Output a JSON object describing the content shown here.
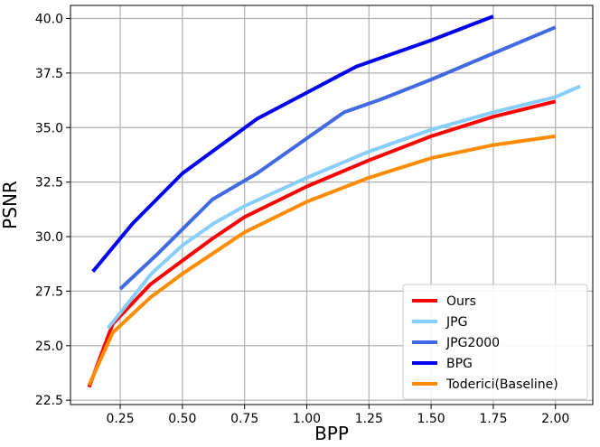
{
  "chart_data": {
    "type": "line",
    "xlabel": "BPP",
    "ylabel": "PSNR",
    "xlim": [
      0.05,
      2.15
    ],
    "ylim": [
      22.3,
      40.6
    ],
    "xticks": [
      0.25,
      0.5,
      0.75,
      1.0,
      1.25,
      1.5,
      1.75,
      2.0
    ],
    "xtick_labels": [
      "0.25",
      "0.50",
      "0.75",
      "1.00",
      "1.25",
      "1.50",
      "1.75",
      "2.00"
    ],
    "yticks": [
      22.5,
      25.0,
      27.5,
      30.0,
      32.5,
      35.0,
      37.5,
      40.0
    ],
    "ytick_labels": [
      "22.5",
      "25.0",
      "27.5",
      "30.0",
      "32.5",
      "35.0",
      "37.5",
      "40.0"
    ],
    "grid": true,
    "legend_position": "bottom-right",
    "series": [
      {
        "name": "Ours",
        "color": "#ff0000",
        "x": [
          0.125,
          0.22,
          0.37,
          0.5,
          0.62,
          0.75,
          1.0,
          1.25,
          1.5,
          1.75,
          2.0
        ],
        "y": [
          23.1,
          26.0,
          27.8,
          28.9,
          29.9,
          30.9,
          32.3,
          33.5,
          34.6,
          35.5,
          36.2
        ]
      },
      {
        "name": "JPG",
        "color": "#87cefa",
        "x": [
          0.2,
          0.25,
          0.375,
          0.5,
          0.625,
          0.75,
          1.0,
          1.25,
          1.5,
          1.75,
          2.0,
          2.1
        ],
        "y": [
          25.8,
          26.5,
          28.3,
          29.6,
          30.6,
          31.4,
          32.7,
          33.9,
          34.9,
          35.7,
          36.4,
          36.9
        ]
      },
      {
        "name": "JPG2000",
        "color": "#4169e1",
        "x": [
          0.25,
          0.4,
          0.62,
          0.8,
          1.0,
          1.15,
          1.3,
          1.5,
          1.75,
          2.0
        ],
        "y": [
          27.6,
          29.2,
          31.7,
          32.9,
          34.5,
          35.7,
          36.3,
          37.2,
          38.4,
          39.6
        ]
      },
      {
        "name": "BPG",
        "color": "#0000ee",
        "x": [
          0.14,
          0.3,
          0.5,
          0.8,
          1.0,
          1.2,
          1.5,
          1.75
        ],
        "y": [
          28.4,
          30.6,
          32.9,
          35.4,
          36.6,
          37.8,
          39.0,
          40.1
        ]
      },
      {
        "name": "Toderici(Baseline)",
        "color": "#ff8c00",
        "x": [
          0.125,
          0.22,
          0.37,
          0.5,
          0.75,
          1.0,
          1.25,
          1.5,
          1.75,
          2.0
        ],
        "y": [
          23.2,
          25.6,
          27.2,
          28.3,
          30.2,
          31.6,
          32.7,
          33.6,
          34.2,
          34.6
        ]
      }
    ]
  }
}
